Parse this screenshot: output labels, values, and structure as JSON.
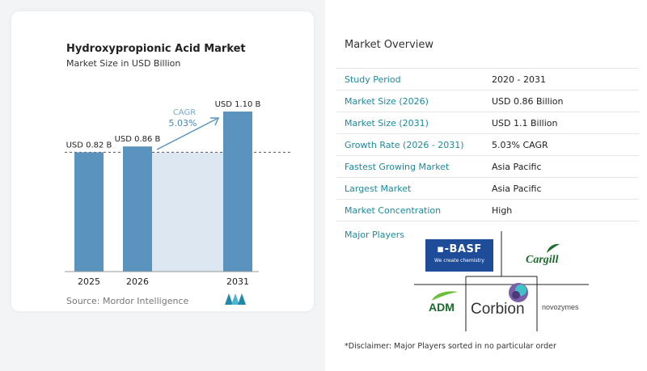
{
  "chart_data": {
    "type": "bar",
    "title": "Hydroxypropionic Acid Market",
    "subtitle": "Market Size in USD Billion",
    "categories": [
      "2025",
      "2026",
      "2031"
    ],
    "values": [
      0.82,
      0.86,
      1.1
    ],
    "data_labels": [
      "USD 0.82 B",
      "USD 0.86 B",
      "USD 1.10 B"
    ],
    "cagr_label": "CAGR",
    "cagr_value": "5.03%",
    "ylim": [
      0,
      1.2
    ],
    "bar_color": "#5a93bd",
    "shade_color": "#dde7f1",
    "source": "Source:  Mordor Intelligence"
  },
  "overview": {
    "title": "Market Overview",
    "rows": [
      {
        "label": "Study Period",
        "value": "2020 - 2031"
      },
      {
        "label": "Market Size (2026)",
        "value": "USD 0.86 Billion"
      },
      {
        "label": "Market Size (2031)",
        "value": "USD 1.1 Billion"
      },
      {
        "label": "Growth Rate (2026 - 2031)",
        "value": "5.03% CAGR"
      },
      {
        "label": "Fastest Growing Market",
        "value": "Asia Pacific"
      },
      {
        "label": "Largest Market",
        "value": "Asia Pacific"
      },
      {
        "label": "Market Concentration",
        "value": "High"
      }
    ]
  },
  "players": {
    "title": "Major Players",
    "basf_mark": "▪-BASF",
    "basf_tag": "We create chemistry",
    "cargill": "Cargill",
    "adm": "ADM",
    "corbion": "Corbion",
    "novozymes": "novozymes"
  },
  "disclaimer": "*Disclaimer: Major Players sorted in no particular order"
}
